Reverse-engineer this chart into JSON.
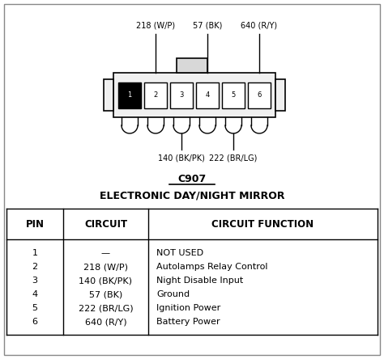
{
  "title_code": "C907",
  "title_name": "ELECTRONIC DAY/NIGHT MIRROR",
  "table_header": [
    "PIN",
    "CIRCUIT",
    "CIRCUIT FUNCTION"
  ],
  "table_rows_pin": [
    "1",
    "2",
    "3",
    "4",
    "5",
    "6"
  ],
  "table_rows_circuit": [
    "—",
    "218 (W/P)",
    "140 (BK/PK)",
    "57 (BK)",
    "222 (BR/LG)",
    "640 (R/Y)"
  ],
  "table_rows_function": [
    "NOT USED",
    "Autolamps Relay Control",
    "Night Disable Input",
    "Ground",
    "Ignition Power",
    "Battery Power"
  ],
  "top_wire_labels": [
    "218 (W/P)",
    "57 (BK)",
    "640 (R/Y)"
  ],
  "bottom_wire_labels": [
    "140 (BK/PK)",
    "222 (BR/LG)"
  ]
}
